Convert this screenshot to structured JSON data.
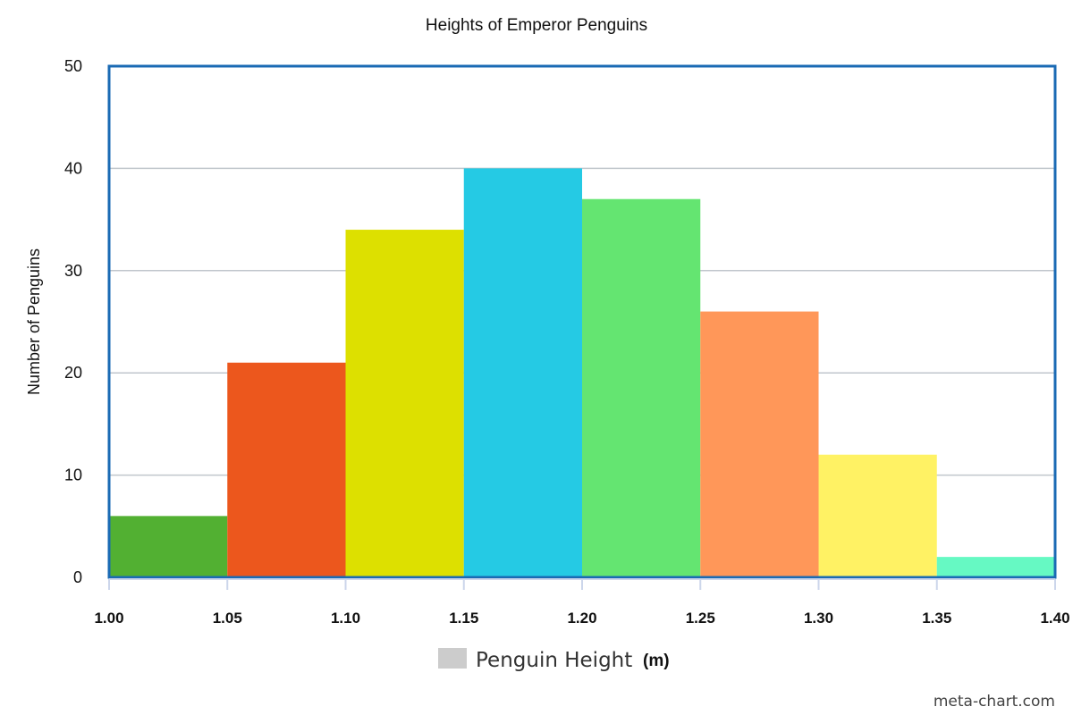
{
  "chart_data": {
    "type": "bar",
    "title": "Heights of Emperor Penguins",
    "xlabel": "Penguin Height",
    "xunit": "(m)",
    "ylabel": "Number of Penguins",
    "bin_edges": [
      1.0,
      1.05,
      1.1,
      1.15,
      1.2,
      1.25,
      1.3,
      1.35,
      1.4
    ],
    "x_tick_labels": [
      "1.00",
      "1.05",
      "1.10",
      "1.15",
      "1.20",
      "1.25",
      "1.30",
      "1.35",
      "1.40"
    ],
    "values": [
      6,
      21,
      34,
      40,
      37,
      26,
      12,
      2
    ],
    "colors": [
      "#52b032",
      "#ec571d",
      "#dde000",
      "#25cae4",
      "#64e571",
      "#ff9759",
      "#fff264",
      "#66f9c3"
    ],
    "ylim": [
      0,
      50
    ],
    "y_ticks": [
      0,
      10,
      20,
      30,
      40,
      50
    ],
    "grid": true,
    "legend_position": "bottom-center",
    "legend_swatch_color": "#cccccc",
    "plot_border_color": "#1a6ab4"
  },
  "credit": "meta-chart.com"
}
